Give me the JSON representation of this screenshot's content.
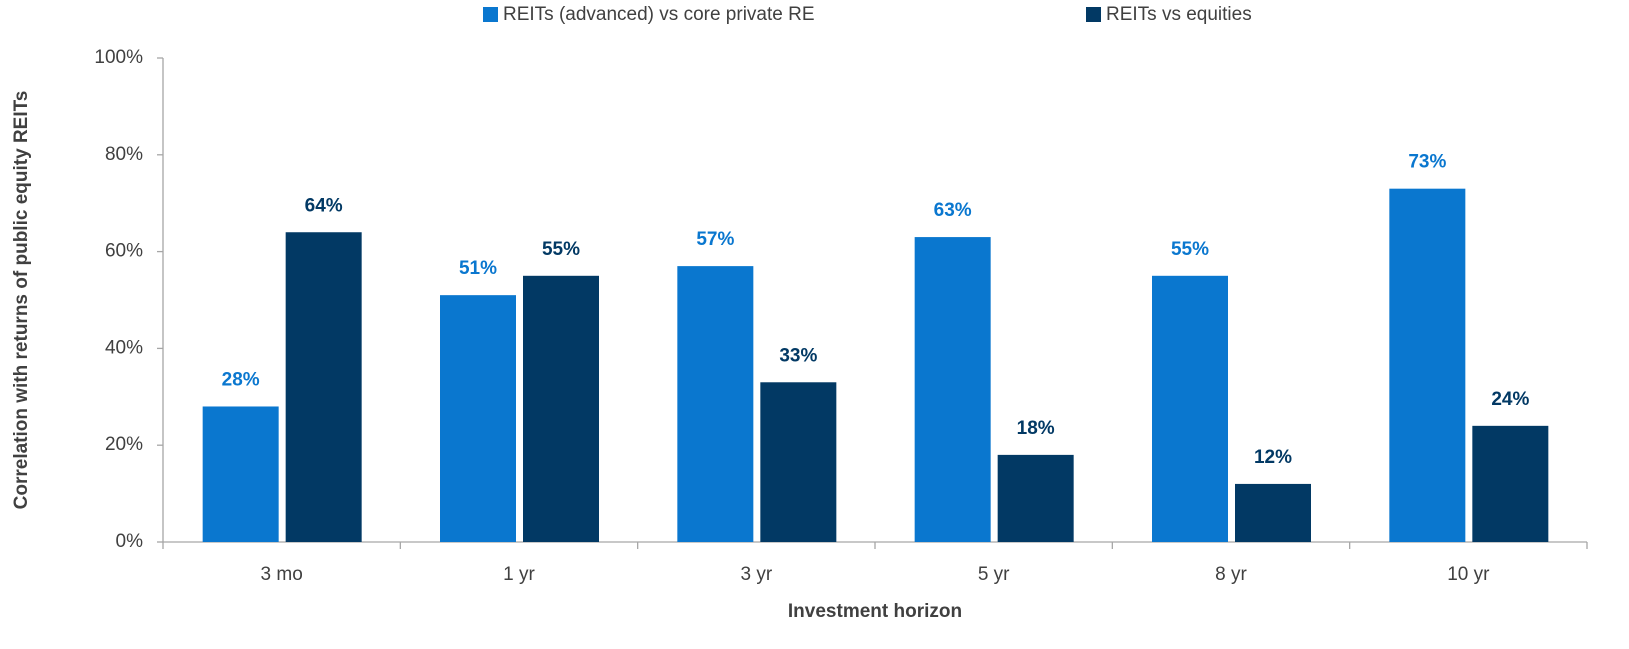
{
  "chart_data": {
    "type": "bar",
    "xlabel": "Investment horizon",
    "ylabel": "Correlation with returns of public equity REITs",
    "categories": [
      "3 mo",
      "1 yr",
      "3 yr",
      "5 yr",
      "8 yr",
      "10 yr"
    ],
    "series": [
      {
        "name": "REITs (advanced) vs core private RE",
        "color": "#0a77cf",
        "values": [
          28,
          51,
          57,
          63,
          55,
          73
        ],
        "value_labels": [
          "28%",
          "51%",
          "57%",
          "63%",
          "55%",
          "73%"
        ]
      },
      {
        "name": "REITs vs equities",
        "color": "#023964",
        "values": [
          64,
          55,
          33,
          18,
          12,
          24
        ],
        "value_labels": [
          "64%",
          "55%",
          "33%",
          "18%",
          "12%",
          "24%"
        ]
      }
    ],
    "ylim": [
      0,
      100
    ],
    "yticks": [
      {
        "value": 0,
        "label": "0%"
      },
      {
        "value": 20,
        "label": "20%"
      },
      {
        "value": 40,
        "label": "40%"
      },
      {
        "value": 60,
        "label": "60%"
      },
      {
        "value": 80,
        "label": "80%"
      },
      {
        "value": 100,
        "label": "100%"
      }
    ],
    "grid": false,
    "legend": "top"
  }
}
